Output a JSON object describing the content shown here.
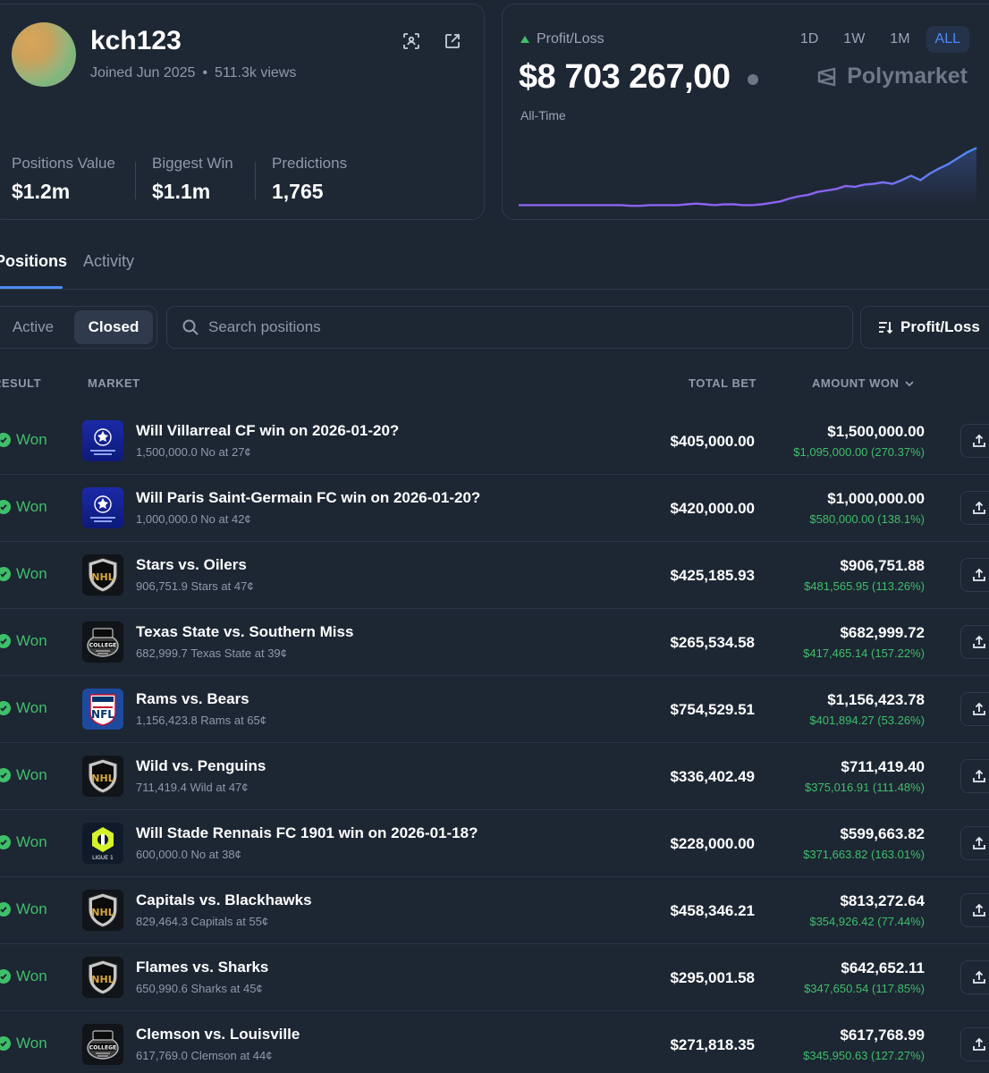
{
  "profile": {
    "username": "kch123",
    "joined": "Joined Jun 2025",
    "views": "511.3k views",
    "stats": [
      {
        "label": "Positions Value",
        "value": "$1.2m"
      },
      {
        "label": "Biggest Win",
        "value": "$1.1m"
      },
      {
        "label": "Predictions",
        "value": "1,765"
      }
    ]
  },
  "pnl": {
    "label": "Profit/Loss",
    "value": "$8 703 267,00",
    "period": "All-Time",
    "ranges": [
      "1D",
      "1W",
      "1M",
      "ALL"
    ],
    "active_range": "ALL",
    "brand": "Polymarket",
    "line_color": "#8a63f0",
    "line_color_end": "#4c8bf5"
  },
  "chart_data": {
    "type": "line",
    "title": "",
    "xlabel": "",
    "ylabel": "",
    "series": [
      {
        "values": [
          0.02,
          0.02,
          0.02,
          0.02,
          0.02,
          0.02,
          0.02,
          0.02,
          0.02,
          0.02,
          0.02,
          0.02,
          0.01,
          0.01,
          0.02,
          0.02,
          0.02,
          0.02,
          0.03,
          0.04,
          0.03,
          0.02,
          0.03,
          0.03,
          0.02,
          0.02,
          0.03,
          0.05,
          0.07,
          0.11,
          0.14,
          0.16,
          0.2,
          0.22,
          0.24,
          0.28,
          0.27,
          0.3,
          0.31,
          0.33,
          0.31,
          0.36,
          0.42,
          0.36,
          0.45,
          0.52,
          0.58,
          0.66,
          0.74,
          0.8
        ]
      }
    ]
  },
  "tabs": [
    "Positions",
    "Activity"
  ],
  "active_tab": "Positions",
  "filters": {
    "active_label": "Active",
    "closed_label": "Closed"
  },
  "search": {
    "placeholder": "Search positions"
  },
  "sort": {
    "label": "Profit/Loss"
  },
  "table": {
    "headers": {
      "result": "RESULT",
      "market": "MARKET",
      "total_bet": "TOTAL BET",
      "amount_won": "AMOUNT WON"
    },
    "rows": [
      {
        "result": "Won",
        "icon": "champions-league",
        "title": "Will Villarreal CF win on 2026-01-20?",
        "subtitle": "1,500,000.0 No at 27¢",
        "total_bet": "$405,000.00",
        "amount_won": "$1,500,000.00",
        "profit": "$1,095,000.00 (270.37%)"
      },
      {
        "result": "Won",
        "icon": "champions-league",
        "title": "Will Paris Saint-Germain FC win on 2026-01-20?",
        "subtitle": "1,000,000.0 No at 42¢",
        "total_bet": "$420,000.00",
        "amount_won": "$1,000,000.00",
        "profit": "$580,000.00 (138.1%)"
      },
      {
        "result": "Won",
        "icon": "nhl",
        "title": "Stars vs. Oilers",
        "subtitle": "906,751.9 Stars at 47¢",
        "total_bet": "$425,185.93",
        "amount_won": "$906,751.88",
        "profit": "$481,565.95 (113.26%)"
      },
      {
        "result": "Won",
        "icon": "college-football",
        "title": "Texas State vs. Southern Miss",
        "subtitle": "682,999.7 Texas State at 39¢",
        "total_bet": "$265,534.58",
        "amount_won": "$682,999.72",
        "profit": "$417,465.14 (157.22%)"
      },
      {
        "result": "Won",
        "icon": "nfl",
        "title": "Rams vs. Bears",
        "subtitle": "1,156,423.8 Rams at 65¢",
        "total_bet": "$754,529.51",
        "amount_won": "$1,156,423.78",
        "profit": "$401,894.27 (53.26%)"
      },
      {
        "result": "Won",
        "icon": "nhl",
        "title": "Wild vs. Penguins",
        "subtitle": "711,419.4 Wild at 47¢",
        "total_bet": "$336,402.49",
        "amount_won": "$711,419.40",
        "profit": "$375,016.91 (111.48%)"
      },
      {
        "result": "Won",
        "icon": "ligue-1",
        "title": "Will Stade Rennais FC 1901 win on 2026-01-18?",
        "subtitle": "600,000.0 No at 38¢",
        "total_bet": "$228,000.00",
        "amount_won": "$599,663.82",
        "profit": "$371,663.82 (163.01%)"
      },
      {
        "result": "Won",
        "icon": "nhl",
        "title": "Capitals vs. Blackhawks",
        "subtitle": "829,464.3 Capitals at 55¢",
        "total_bet": "$458,346.21",
        "amount_won": "$813,272.64",
        "profit": "$354,926.42 (77.44%)"
      },
      {
        "result": "Won",
        "icon": "nhl",
        "title": "Flames vs. Sharks",
        "subtitle": "650,990.6 Sharks at 45¢",
        "total_bet": "$295,001.58",
        "amount_won": "$642,652.11",
        "profit": "$347,650.54 (117.85%)"
      },
      {
        "result": "Won",
        "icon": "college-football",
        "title": "Clemson vs. Louisville",
        "subtitle": "617,769.0 Clemson at 44¢",
        "total_bet": "$271,818.35",
        "amount_won": "$617,768.99",
        "profit": "$345,950.63 (127.27%)"
      }
    ]
  },
  "colors": {
    "accent": "#4c8bf5",
    "won": "#3fbf6a",
    "background": "#1d2633"
  }
}
